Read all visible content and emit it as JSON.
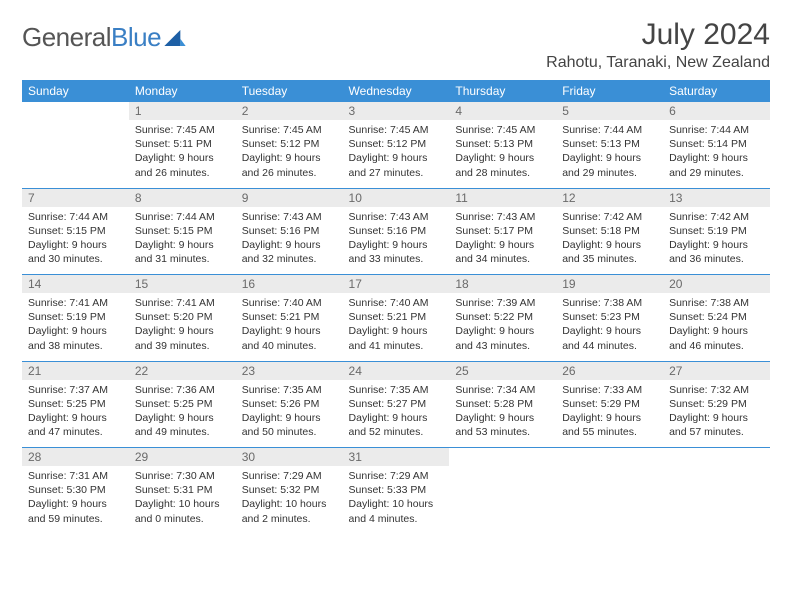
{
  "brand": {
    "general": "General",
    "blue": "Blue"
  },
  "header": {
    "month_title": "July 2024",
    "location": "Rahotu, Taranaki, New Zealand"
  },
  "colors": {
    "accent": "#3a8fd6",
    "logo_blue": "#3a7fc4",
    "daynum_bg": "#ebebeb",
    "daynum_text": "#6a6a6a",
    "text": "#333333",
    "background": "#ffffff"
  },
  "weekdays": [
    "Sunday",
    "Monday",
    "Tuesday",
    "Wednesday",
    "Thursday",
    "Friday",
    "Saturday"
  ],
  "weeks": [
    {
      "nums": [
        "",
        "1",
        "2",
        "3",
        "4",
        "5",
        "6"
      ],
      "cells": [
        null,
        {
          "sunrise": "Sunrise: 7:45 AM",
          "sunset": "Sunset: 5:11 PM",
          "daylight": "Daylight: 9 hours and 26 minutes."
        },
        {
          "sunrise": "Sunrise: 7:45 AM",
          "sunset": "Sunset: 5:12 PM",
          "daylight": "Daylight: 9 hours and 26 minutes."
        },
        {
          "sunrise": "Sunrise: 7:45 AM",
          "sunset": "Sunset: 5:12 PM",
          "daylight": "Daylight: 9 hours and 27 minutes."
        },
        {
          "sunrise": "Sunrise: 7:45 AM",
          "sunset": "Sunset: 5:13 PM",
          "daylight": "Daylight: 9 hours and 28 minutes."
        },
        {
          "sunrise": "Sunrise: 7:44 AM",
          "sunset": "Sunset: 5:13 PM",
          "daylight": "Daylight: 9 hours and 29 minutes."
        },
        {
          "sunrise": "Sunrise: 7:44 AM",
          "sunset": "Sunset: 5:14 PM",
          "daylight": "Daylight: 9 hours and 29 minutes."
        }
      ]
    },
    {
      "nums": [
        "7",
        "8",
        "9",
        "10",
        "11",
        "12",
        "13"
      ],
      "cells": [
        {
          "sunrise": "Sunrise: 7:44 AM",
          "sunset": "Sunset: 5:15 PM",
          "daylight": "Daylight: 9 hours and 30 minutes."
        },
        {
          "sunrise": "Sunrise: 7:44 AM",
          "sunset": "Sunset: 5:15 PM",
          "daylight": "Daylight: 9 hours and 31 minutes."
        },
        {
          "sunrise": "Sunrise: 7:43 AM",
          "sunset": "Sunset: 5:16 PM",
          "daylight": "Daylight: 9 hours and 32 minutes."
        },
        {
          "sunrise": "Sunrise: 7:43 AM",
          "sunset": "Sunset: 5:16 PM",
          "daylight": "Daylight: 9 hours and 33 minutes."
        },
        {
          "sunrise": "Sunrise: 7:43 AM",
          "sunset": "Sunset: 5:17 PM",
          "daylight": "Daylight: 9 hours and 34 minutes."
        },
        {
          "sunrise": "Sunrise: 7:42 AM",
          "sunset": "Sunset: 5:18 PM",
          "daylight": "Daylight: 9 hours and 35 minutes."
        },
        {
          "sunrise": "Sunrise: 7:42 AM",
          "sunset": "Sunset: 5:19 PM",
          "daylight": "Daylight: 9 hours and 36 minutes."
        }
      ]
    },
    {
      "nums": [
        "14",
        "15",
        "16",
        "17",
        "18",
        "19",
        "20"
      ],
      "cells": [
        {
          "sunrise": "Sunrise: 7:41 AM",
          "sunset": "Sunset: 5:19 PM",
          "daylight": "Daylight: 9 hours and 38 minutes."
        },
        {
          "sunrise": "Sunrise: 7:41 AM",
          "sunset": "Sunset: 5:20 PM",
          "daylight": "Daylight: 9 hours and 39 minutes."
        },
        {
          "sunrise": "Sunrise: 7:40 AM",
          "sunset": "Sunset: 5:21 PM",
          "daylight": "Daylight: 9 hours and 40 minutes."
        },
        {
          "sunrise": "Sunrise: 7:40 AM",
          "sunset": "Sunset: 5:21 PM",
          "daylight": "Daylight: 9 hours and 41 minutes."
        },
        {
          "sunrise": "Sunrise: 7:39 AM",
          "sunset": "Sunset: 5:22 PM",
          "daylight": "Daylight: 9 hours and 43 minutes."
        },
        {
          "sunrise": "Sunrise: 7:38 AM",
          "sunset": "Sunset: 5:23 PM",
          "daylight": "Daylight: 9 hours and 44 minutes."
        },
        {
          "sunrise": "Sunrise: 7:38 AM",
          "sunset": "Sunset: 5:24 PM",
          "daylight": "Daylight: 9 hours and 46 minutes."
        }
      ]
    },
    {
      "nums": [
        "21",
        "22",
        "23",
        "24",
        "25",
        "26",
        "27"
      ],
      "cells": [
        {
          "sunrise": "Sunrise: 7:37 AM",
          "sunset": "Sunset: 5:25 PM",
          "daylight": "Daylight: 9 hours and 47 minutes."
        },
        {
          "sunrise": "Sunrise: 7:36 AM",
          "sunset": "Sunset: 5:25 PM",
          "daylight": "Daylight: 9 hours and 49 minutes."
        },
        {
          "sunrise": "Sunrise: 7:35 AM",
          "sunset": "Sunset: 5:26 PM",
          "daylight": "Daylight: 9 hours and 50 minutes."
        },
        {
          "sunrise": "Sunrise: 7:35 AM",
          "sunset": "Sunset: 5:27 PM",
          "daylight": "Daylight: 9 hours and 52 minutes."
        },
        {
          "sunrise": "Sunrise: 7:34 AM",
          "sunset": "Sunset: 5:28 PM",
          "daylight": "Daylight: 9 hours and 53 minutes."
        },
        {
          "sunrise": "Sunrise: 7:33 AM",
          "sunset": "Sunset: 5:29 PM",
          "daylight": "Daylight: 9 hours and 55 minutes."
        },
        {
          "sunrise": "Sunrise: 7:32 AM",
          "sunset": "Sunset: 5:29 PM",
          "daylight": "Daylight: 9 hours and 57 minutes."
        }
      ]
    },
    {
      "nums": [
        "28",
        "29",
        "30",
        "31",
        "",
        "",
        ""
      ],
      "cells": [
        {
          "sunrise": "Sunrise: 7:31 AM",
          "sunset": "Sunset: 5:30 PM",
          "daylight": "Daylight: 9 hours and 59 minutes."
        },
        {
          "sunrise": "Sunrise: 7:30 AM",
          "sunset": "Sunset: 5:31 PM",
          "daylight": "Daylight: 10 hours and 0 minutes."
        },
        {
          "sunrise": "Sunrise: 7:29 AM",
          "sunset": "Sunset: 5:32 PM",
          "daylight": "Daylight: 10 hours and 2 minutes."
        },
        {
          "sunrise": "Sunrise: 7:29 AM",
          "sunset": "Sunset: 5:33 PM",
          "daylight": "Daylight: 10 hours and 4 minutes."
        },
        null,
        null,
        null
      ]
    }
  ]
}
